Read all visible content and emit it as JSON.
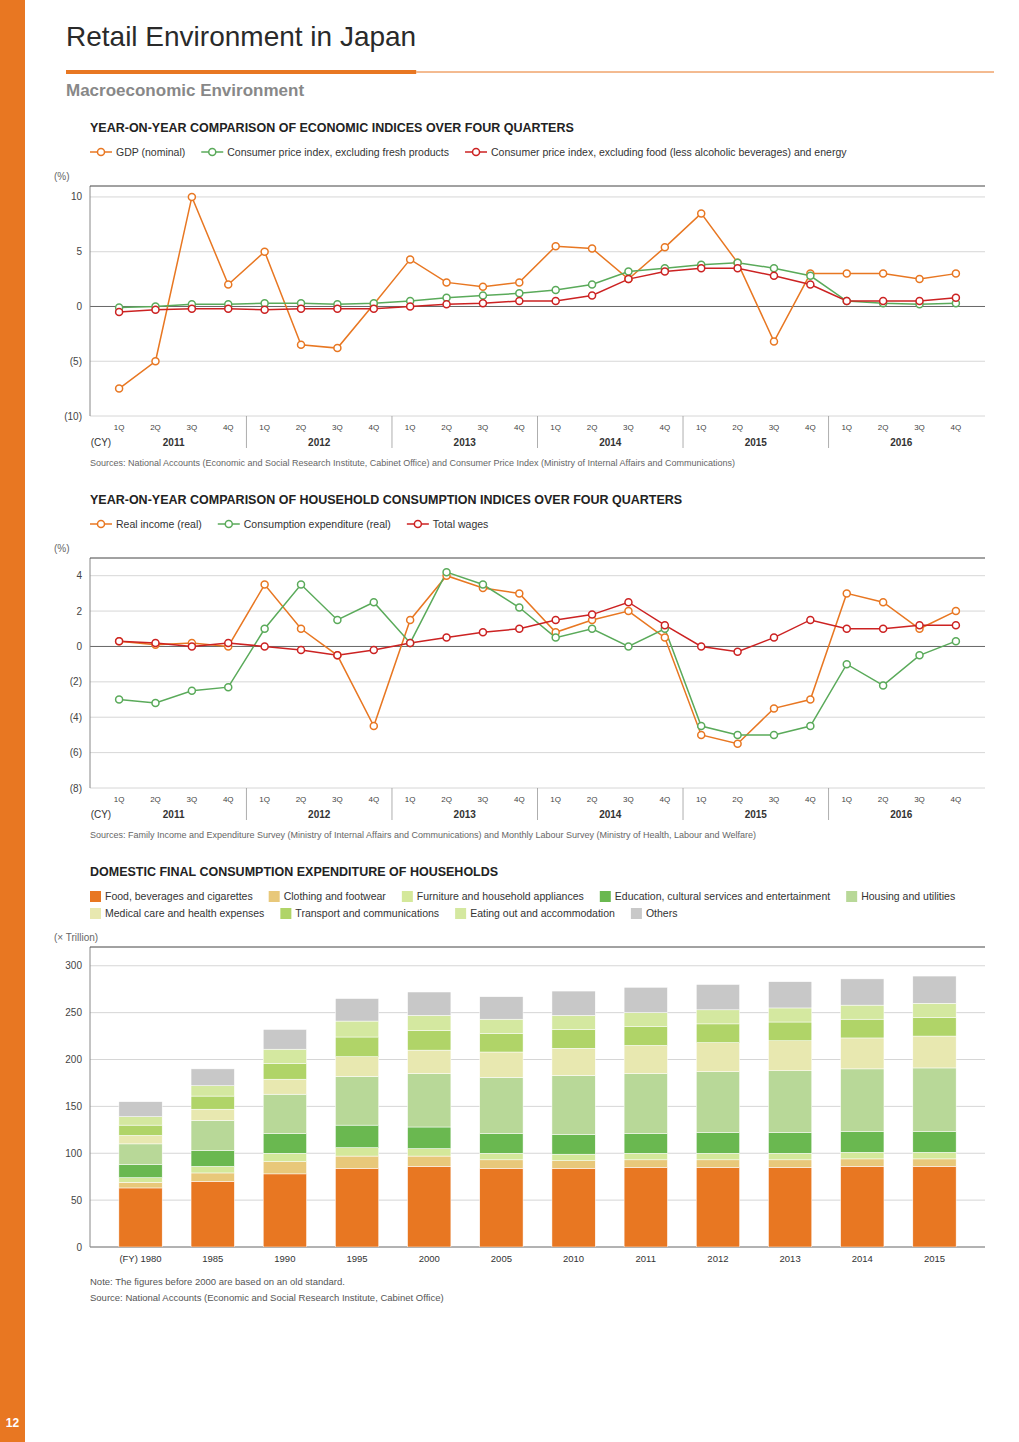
{
  "title": "Retail Environment in Japan",
  "subtitle": "Macroeconomic Environment",
  "accent_color": "#E87722",
  "page_number": 12,
  "chart_data": [
    {
      "type": "line",
      "title": "YEAR-ON-YEAR COMPARISON OF ECONOMIC INDICES OVER FOUR QUARTERS",
      "ylabel": "(%)",
      "source": "Sources: National Accounts (Economic and Social Research Institute, Cabinet Office) and Consumer Price Index (Ministry of Internal Affairs and Communications)",
      "categories": [
        "1Q",
        "2Q",
        "3Q",
        "4Q",
        "1Q",
        "2Q",
        "3Q",
        "4Q",
        "1Q",
        "2Q",
        "3Q",
        "4Q",
        "1Q",
        "2Q",
        "3Q",
        "4Q",
        "1Q",
        "2Q",
        "3Q",
        "4Q",
        "1Q",
        "2Q",
        "3Q",
        "4Q"
      ],
      "x_group_labels": [
        "(CY)",
        "2011",
        "2012",
        "2013",
        "2014",
        "2015",
        "2016"
      ],
      "ylim": [
        -10,
        11
      ],
      "yticks": [
        {
          "value": -10,
          "label": "(10)"
        },
        {
          "value": -5,
          "label": "(5)"
        },
        0,
        5,
        10
      ],
      "grid": true,
      "legend": "top",
      "series": [
        {
          "name": "GDP (nominal)",
          "color": "#E87722",
          "marker": "circle",
          "values": [
            -7.5,
            -5.0,
            10.0,
            2.0,
            5.0,
            -3.5,
            -3.8,
            0.2,
            4.3,
            2.2,
            1.8,
            2.2,
            5.5,
            5.3,
            2.5,
            5.4,
            8.5,
            4.0,
            -3.2,
            3.0,
            3.0,
            3.0,
            2.5,
            3.0
          ]
        },
        {
          "name": "Consumer price index, excluding fresh products",
          "color": "#5aaa5a",
          "marker": "circle",
          "values": [
            -0.1,
            0.0,
            0.2,
            0.2,
            0.3,
            0.3,
            0.2,
            0.3,
            0.5,
            0.8,
            1.0,
            1.2,
            1.5,
            2.0,
            3.2,
            3.5,
            3.8,
            4.0,
            3.5,
            2.8,
            0.5,
            0.3,
            0.2,
            0.3
          ]
        },
        {
          "name": "Consumer price index, excluding food (less alcoholic beverages) and energy",
          "color": "#cc2222",
          "marker": "circle",
          "values": [
            -0.5,
            -0.3,
            -0.2,
            -0.2,
            -0.3,
            -0.2,
            -0.2,
            -0.2,
            0.0,
            0.2,
            0.3,
            0.5,
            0.5,
            1.0,
            2.5,
            3.2,
            3.5,
            3.5,
            2.8,
            2.0,
            0.5,
            0.5,
            0.5,
            0.8
          ]
        }
      ]
    },
    {
      "type": "line",
      "title": "YEAR-ON-YEAR COMPARISON OF HOUSEHOLD CONSUMPTION INDICES OVER FOUR QUARTERS",
      "ylabel": "(%)",
      "source": "Sources: Family Income and Expenditure Survey (Ministry of Internal Affairs and Communications) and Monthly Labour Survey (Ministry of Health, Labour and Welfare)",
      "categories": [
        "1Q",
        "2Q",
        "3Q",
        "4Q",
        "1Q",
        "2Q",
        "3Q",
        "4Q",
        "1Q",
        "2Q",
        "3Q",
        "4Q",
        "1Q",
        "2Q",
        "3Q",
        "4Q",
        "1Q",
        "2Q",
        "3Q",
        "4Q",
        "1Q",
        "2Q",
        "3Q",
        "4Q"
      ],
      "x_group_labels": [
        "(CY)",
        "2011",
        "2012",
        "2013",
        "2014",
        "2015",
        "2016"
      ],
      "ylim": [
        -8,
        5
      ],
      "yticks": [
        {
          "value": -8,
          "label": "(8)"
        },
        {
          "value": -6,
          "label": "(6)"
        },
        {
          "value": -4,
          "label": "(4)"
        },
        {
          "value": -2,
          "label": "(2)"
        },
        0,
        2,
        4
      ],
      "grid": true,
      "legend": "top",
      "series": [
        {
          "name": "Real income (real)",
          "color": "#E87722",
          "marker": "circle",
          "values": [
            0.3,
            0.1,
            0.2,
            0.0,
            3.5,
            1.0,
            -0.5,
            -4.5,
            1.5,
            4.0,
            3.3,
            3.0,
            0.8,
            1.5,
            2.0,
            0.5,
            -5.0,
            -5.5,
            -3.5,
            -3.0,
            3.0,
            2.5,
            1.0,
            2.0
          ]
        },
        {
          "name": "Consumption expenditure (real)",
          "color": "#5aaa5a",
          "marker": "circle",
          "values": [
            -3.0,
            -3.2,
            -2.5,
            -2.3,
            1.0,
            3.5,
            1.5,
            2.5,
            0.2,
            4.2,
            3.5,
            2.2,
            0.5,
            1.0,
            0.0,
            1.0,
            -4.5,
            -5.0,
            -5.0,
            -4.5,
            -1.0,
            -2.2,
            -0.5,
            0.3
          ]
        },
        {
          "name": "Total wages",
          "color": "#cc2222",
          "marker": "circle",
          "values": [
            0.3,
            0.2,
            0.0,
            0.2,
            0.0,
            -0.2,
            -0.5,
            -0.2,
            0.2,
            0.5,
            0.8,
            1.0,
            1.5,
            1.8,
            2.5,
            1.2,
            0.0,
            -0.3,
            0.5,
            1.5,
            1.0,
            1.0,
            1.2,
            1.2
          ]
        }
      ]
    },
    {
      "type": "bar",
      "stacked": true,
      "title": "DOMESTIC FINAL CONSUMPTION EXPENDITURE OF HOUSEHOLDS",
      "ylabel": "(× Trillion)",
      "note": "Note: The figures before 2000 are based on an old standard.",
      "source": "Source: National Accounts (Economic and Social Research Institute, Cabinet Office)",
      "categories": [
        "(FY) 1980",
        "1985",
        "1990",
        "1995",
        "2000",
        "2005",
        "2010",
        "2011",
        "2012",
        "2013",
        "2014",
        "2015"
      ],
      "ylim": [
        0,
        320
      ],
      "yticks": [
        0,
        50,
        100,
        150,
        200,
        250,
        300
      ],
      "grid": true,
      "legend": "top",
      "series": [
        {
          "name": "Food, beverages and cigarettes",
          "color": "#E87722",
          "values": [
            63,
            70,
            78,
            84,
            86,
            84,
            84,
            85,
            85,
            85,
            86,
            86
          ]
        },
        {
          "name": "Clothing and footwear",
          "color": "#e8c87a",
          "values": [
            6,
            9,
            13,
            13,
            11,
            9,
            8,
            8,
            8,
            8,
            8,
            8
          ]
        },
        {
          "name": "Furniture and household appliances",
          "color": "#d4e89a",
          "values": [
            5,
            7,
            9,
            9,
            8,
            7,
            7,
            7,
            7,
            7,
            7,
            7
          ]
        },
        {
          "name": "Education, cultural services and entertainment",
          "color": "#6ab850",
          "values": [
            14,
            17,
            21,
            24,
            23,
            21,
            21,
            21,
            22,
            22,
            22,
            22
          ]
        },
        {
          "name": "Housing and utilities",
          "color": "#b8d898",
          "values": [
            22,
            32,
            42,
            52,
            57,
            60,
            63,
            64,
            65,
            66,
            67,
            68
          ]
        },
        {
          "name": "Medical care and health expenses",
          "color": "#e8e8b0",
          "values": [
            9,
            12,
            16,
            21,
            25,
            27,
            29,
            30,
            31,
            32,
            33,
            34
          ]
        },
        {
          "name": "Transport and communications",
          "color": "#b0d468",
          "values": [
            11,
            14,
            17,
            21,
            21,
            20,
            20,
            20,
            20,
            20,
            20,
            20
          ]
        },
        {
          "name": "Eating out and accommodation",
          "color": "#d4e8a0",
          "values": [
            9,
            11,
            15,
            17,
            16,
            15,
            15,
            15,
            15,
            15,
            15,
            15
          ]
        },
        {
          "name": "Others",
          "color": "#c8c8c8",
          "values": [
            16,
            18,
            21,
            24,
            25,
            24,
            26,
            27,
            27,
            28,
            28,
            29
          ]
        }
      ]
    }
  ]
}
